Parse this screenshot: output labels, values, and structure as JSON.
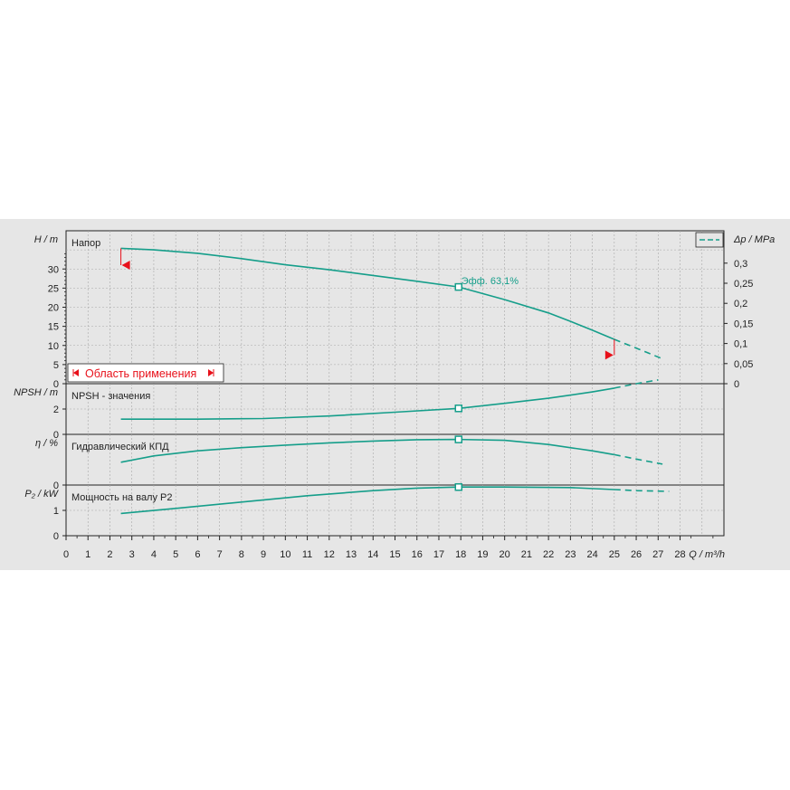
{
  "chart_data": [
    {
      "type": "line",
      "panel": "head",
      "title": "Напор",
      "ylabel": "H / m",
      "y2label": "Δp / MPa",
      "xlim": [
        0,
        30
      ],
      "ylim": [
        0,
        40
      ],
      "yticks": [
        0,
        5,
        10,
        15,
        20,
        25,
        30
      ],
      "y2ticks": [
        "0",
        "0,05",
        "0,1",
        "0,15",
        "0,2",
        "0,25",
        "0,3"
      ],
      "series": [
        {
          "x": [
            2.5,
            4,
            6,
            8,
            10,
            12,
            14,
            16,
            17.9,
            20,
            22,
            23,
            24,
            25
          ],
          "y": [
            35.4,
            35.0,
            34.1,
            32.7,
            31.1,
            29.8,
            28.3,
            26.8,
            25.3,
            22.0,
            18.5,
            16.3,
            14.0,
            11.6
          ]
        },
        {
          "style": "dashed",
          "x": [
            25,
            26,
            27.2
          ],
          "y": [
            11.6,
            9.3,
            6.5
          ]
        }
      ],
      "annotation": {
        "label": "Эфф.  63,1%",
        "x": 17.9,
        "y": 25.3
      },
      "application_range": {
        "label": "Область применения",
        "min": 2.7,
        "max": 24.8
      }
    },
    {
      "type": "line",
      "panel": "npsh",
      "title": "NPSH - значения",
      "ylabel": "NPSH / m",
      "ylim": [
        0,
        4
      ],
      "yticks": [
        0,
        2
      ],
      "series": [
        {
          "x": [
            2.5,
            6,
            9,
            12,
            15,
            17.9,
            20,
            22,
            24,
            25
          ],
          "y": [
            1.2,
            1.2,
            1.25,
            1.45,
            1.75,
            2.05,
            2.45,
            2.85,
            3.35,
            3.65
          ]
        },
        {
          "style": "dashed",
          "x": [
            25,
            26,
            27
          ],
          "y": [
            3.65,
            4.0,
            4.3
          ]
        }
      ],
      "marker": {
        "x": 17.9,
        "y": 2.05
      }
    },
    {
      "type": "line",
      "panel": "efficiency",
      "title": "Гидравлический КПД",
      "ylabel": "η / %",
      "ylim": [
        0,
        80
      ],
      "yticks": [
        0
      ],
      "series": [
        {
          "x": [
            2.5,
            4,
            6,
            8,
            10,
            12,
            14,
            16,
            17.9,
            20,
            22,
            24,
            25
          ],
          "y": [
            36,
            46,
            54,
            59,
            63,
            66.5,
            69.5,
            71.5,
            72,
            70.5,
            64,
            54,
            48
          ]
        },
        {
          "style": "dashed",
          "x": [
            25,
            26,
            27.2
          ],
          "y": [
            48,
            41,
            33
          ]
        }
      ],
      "marker": {
        "x": 17.9,
        "y": 72
      }
    },
    {
      "type": "line",
      "panel": "power",
      "title": "Мощность на валу P2",
      "ylabel": "P₂ / kW",
      "xlabel": "Q / m³/h",
      "ylim": [
        0,
        2
      ],
      "yticks": [
        0,
        1
      ],
      "xticks": [
        0,
        1,
        2,
        3,
        4,
        5,
        6,
        7,
        8,
        9,
        10,
        11,
        12,
        13,
        14,
        15,
        16,
        17,
        18,
        19,
        20,
        21,
        22,
        23,
        24,
        25,
        26,
        27,
        28
      ],
      "series": [
        {
          "x": [
            2.5,
            5,
            8,
            11,
            14,
            16,
            17.9,
            20,
            23,
            25
          ],
          "y": [
            0.88,
            1.08,
            1.33,
            1.58,
            1.78,
            1.88,
            1.92,
            1.92,
            1.9,
            1.82
          ]
        },
        {
          "style": "dashed",
          "x": [
            25,
            26,
            27.5
          ],
          "y": [
            1.82,
            1.78,
            1.75
          ]
        }
      ],
      "marker": {
        "x": 17.9,
        "y": 1.92
      }
    }
  ],
  "colors": {
    "curve": "#159e8a",
    "range": "#e8101a",
    "grid": "#a8a8a8",
    "plot_bg": "#e6e6e6",
    "axis": "#222222"
  },
  "legend": {
    "symbol": "dashed-line-icon"
  }
}
